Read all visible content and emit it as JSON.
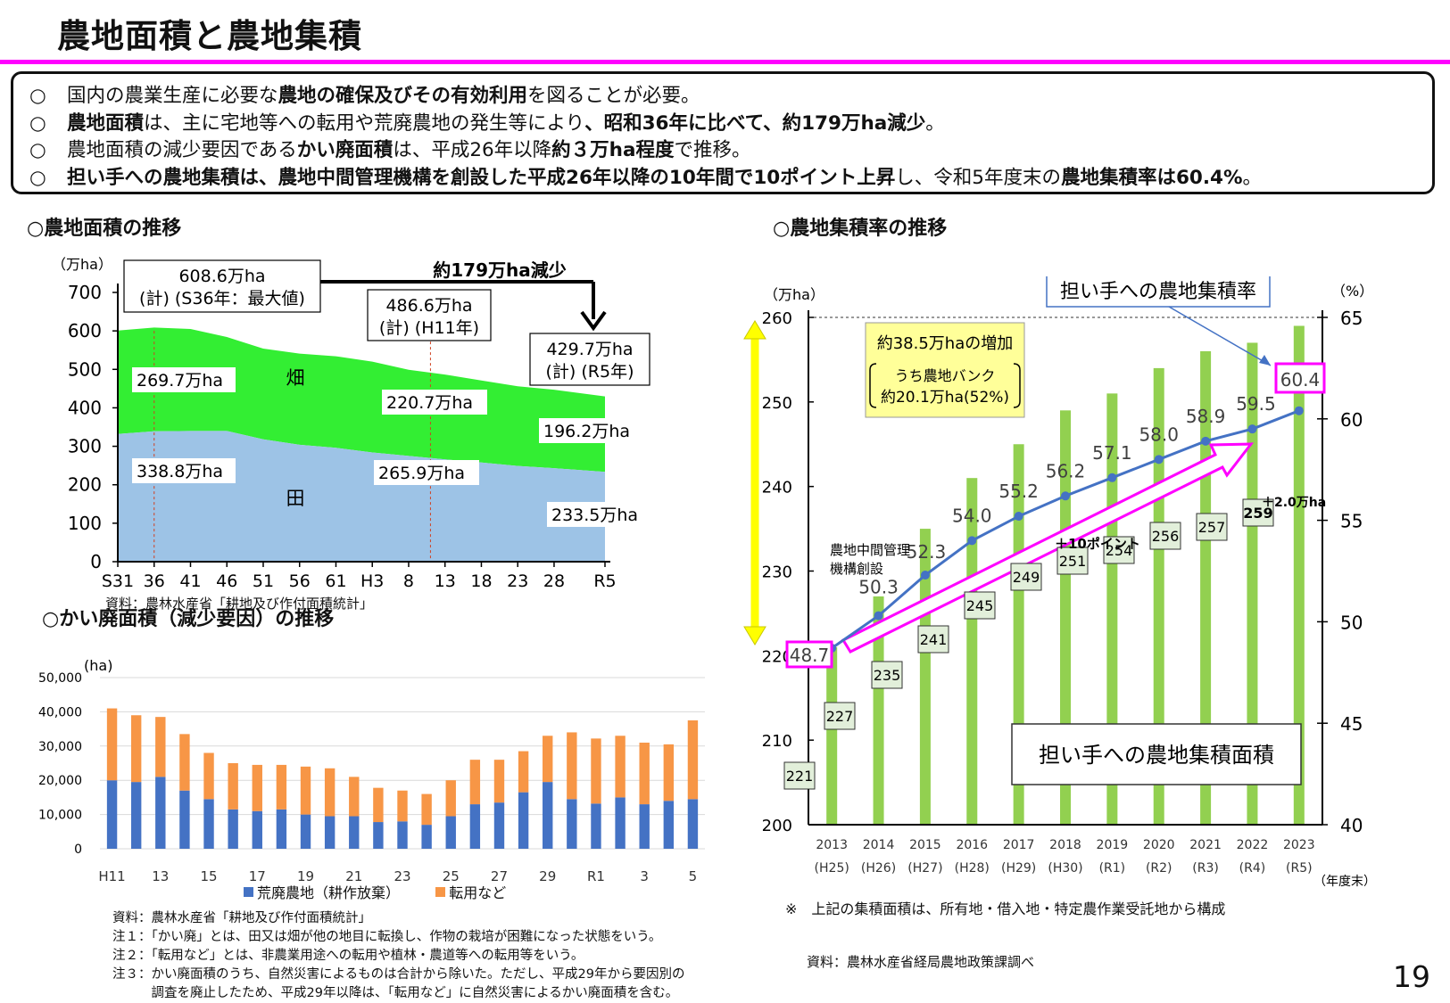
{
  "title": "農地面積と農地集積",
  "summary": [
    [
      {
        "t": "国内の農業生産に必要な",
        "b": false
      },
      {
        "t": "農地の確保及びその有効利用",
        "b": true
      },
      {
        "t": "を図ることが必要。",
        "b": false
      }
    ],
    [
      {
        "t": "農地面積",
        "b": true
      },
      {
        "t": "は、主に宅地等への転用や荒廃農地の発生等により",
        "b": false
      },
      {
        "t": "、昭和36年に比べて、約179万ha減少",
        "b": true
      },
      {
        "t": "。",
        "b": false
      }
    ],
    [
      {
        "t": "農地面積の減少要因である",
        "b": false
      },
      {
        "t": "かい廃面積",
        "b": true
      },
      {
        "t": "は、平成26年以降",
        "b": false
      },
      {
        "t": "約３万ha程度",
        "b": true
      },
      {
        "t": "で推移。",
        "b": false
      }
    ],
    [
      {
        "t": "担い手への農地集積は、農地中間管理機構を創設した平成26年以降の10年間で10ポイント上昇",
        "b": true
      },
      {
        "t": "し、令和5年度末の",
        "b": false
      },
      {
        "t": "農地集積率は60.4%",
        "b": true
      },
      {
        "t": "。",
        "b": false
      }
    ]
  ],
  "summary_marker": "○",
  "sections": {
    "area": "○農地面積の推移",
    "kaihai": "○かい廃面積（減少要因）の推移",
    "rate": "○農地集積率の推移"
  },
  "sources": {
    "area": "資料：農林水産省「耕地及び作付面積統計」",
    "kaihai": "資料：農林水産省「耕地及び作付面積統計」",
    "rate": "資料：農林水産省経局農地政策課調べ"
  },
  "notes": [
    "注１：「かい廃」とは、田又は畑が他の地目に転換し、作物の栽培が困難になった状態をいう。",
    "注２：「転用など」とは、非農業用途への転用や植林・農道等への転用等をいう。",
    "注３：かい廃面積のうち、自然災害によるものは合計から除いた。ただし、平成29年から要因別の",
    "　　　調査を廃止したため、平成29年以降は、「転用など」に自然災害によるかい廃面積を含む。"
  ],
  "rate_note": "※　上記の集積面積は、所有地・借入地・特定農作業受託地から構成",
  "page_number": "19",
  "chart_data": [
    {
      "id": "farmland_area",
      "type": "area",
      "ylabel": "（万ha）",
      "ylim": [
        0,
        700
      ],
      "yticks": [
        0,
        100,
        200,
        300,
        400,
        500,
        600,
        700
      ],
      "x_labels": [
        "S31",
        "36",
        "41",
        "46",
        "51",
        "56",
        "61",
        "H3",
        "8",
        "13",
        "18",
        "23",
        "28",
        "R5"
      ],
      "x": [
        1956,
        1961,
        1966,
        1971,
        1976,
        1981,
        1986,
        1991,
        1996,
        2001,
        2006,
        2011,
        2016,
        2023
      ],
      "series": [
        {
          "name": "田",
          "color": "#9dc3e6",
          "values": [
            332,
            339,
            340,
            340,
            318,
            304,
            296,
            284,
            275,
            265.9,
            258,
            249,
            243,
            233.5
          ]
        },
        {
          "name": "畑",
          "color": "#33ee33",
          "values": [
            269,
            269.7,
            265,
            244,
            236,
            237,
            238,
            236,
            224,
            220.7,
            213,
            207,
            204,
            196.2
          ]
        }
      ],
      "series_labels": {
        "paddy": "田",
        "upland": "畑"
      },
      "annotations": {
        "s36_total": [
          "608.6万ha",
          "(計) (S36年：最大値)"
        ],
        "h11_total": [
          "486.6万ha",
          "(計) (H11年)"
        ],
        "r5_total": [
          "429.7万ha",
          "(計) (R5年)"
        ],
        "decrease": "約179万ha減少",
        "s36_upland": "269.7万ha",
        "s36_paddy": "338.8万ha",
        "h11_upland": "220.7万ha",
        "h11_paddy": "265.9万ha",
        "r5_upland": "196.2万ha",
        "r5_paddy": "233.5万ha"
      }
    },
    {
      "id": "kaihai_area",
      "type": "bar",
      "stacked": true,
      "ylabel": "(ha)",
      "ylim": [
        0,
        50000
      ],
      "yticks": [
        "0",
        "10,000",
        "20,000",
        "30,000",
        "40,000",
        "50,000"
      ],
      "categories": [
        "H11",
        "12",
        "13",
        "14",
        "15",
        "16",
        "17",
        "18",
        "19",
        "20",
        "21",
        "22",
        "23",
        "24",
        "25",
        "26",
        "27",
        "28",
        "29",
        "30",
        "R1",
        "2",
        "3",
        "4",
        "5"
      ],
      "category_labels": [
        "H11",
        "",
        "13",
        "",
        "15",
        "",
        "17",
        "",
        "19",
        "",
        "21",
        "",
        "23",
        "",
        "25",
        "",
        "27",
        "",
        "29",
        "",
        "R1",
        "",
        "3",
        "",
        "5"
      ],
      "series": [
        {
          "name": "荒廃農地（耕作放棄）",
          "color": "#4472c4",
          "values": [
            20000,
            19500,
            21000,
            17000,
            14500,
            11500,
            11000,
            11500,
            10000,
            9500,
            9500,
            7800,
            8000,
            7000,
            9500,
            13000,
            13500,
            16500,
            19500,
            14500,
            13200,
            15000,
            13000,
            14000,
            14500
          ]
        },
        {
          "name": "転用など",
          "color": "#f79646",
          "values": [
            21000,
            19500,
            17500,
            16500,
            13500,
            13500,
            13500,
            13000,
            14000,
            14000,
            11500,
            10000,
            9000,
            9000,
            10500,
            13000,
            12500,
            12000,
            13500,
            19500,
            19000,
            18000,
            18000,
            16500,
            23000
          ]
        }
      ]
    },
    {
      "id": "consolidation",
      "type": "bar",
      "title": "担い手への農地集積率",
      "bar_title": "担い手への農地集積面積",
      "y_left_label": "（万ha）",
      "y_right_label": "（%）",
      "y_left_lim": [
        200,
        260
      ],
      "y_left_ticks": [
        200,
        210,
        220,
        230,
        240,
        250,
        260
      ],
      "y_right_lim": [
        40,
        65
      ],
      "y_right_ticks": [
        40,
        45,
        50,
        55,
        60,
        65
      ],
      "categories": [
        "2013",
        "2014",
        "2015",
        "2016",
        "2017",
        "2018",
        "2019",
        "2020",
        "2021",
        "2022",
        "2023"
      ],
      "sub_categories": [
        "(H25)",
        "(H26)",
        "(H27)",
        "(H28)",
        "(H29)",
        "(H30)",
        "(R1)",
        "(R2)",
        "(R3)",
        "(R4)",
        "(R5)"
      ],
      "x_unit": "（年度末）",
      "bar_values": [
        221,
        227,
        235,
        241,
        245,
        249,
        251,
        254,
        256,
        257,
        259
      ],
      "bar_labels": [
        "221",
        "227",
        "235",
        "241",
        "245",
        "249",
        "251",
        "254",
        "256",
        "257",
        "259"
      ],
      "bar_color": "#92d050",
      "line_values": [
        48.7,
        50.3,
        52.3,
        54.0,
        55.2,
        56.2,
        57.1,
        58.0,
        58.9,
        59.5,
        60.4
      ],
      "line_labels": [
        "48.7",
        "50.3",
        "52.3",
        "54.0",
        "55.2",
        "56.2",
        "57.1",
        "58.0",
        "58.9",
        "59.5",
        "60.4"
      ],
      "line_color": "#4472c4",
      "annotations": {
        "increase": [
          "約38.5万haの増加",
          "うち農地バンク",
          "約20.1万ha(52%)"
        ],
        "increase_unit": "万ha",
        "kikou": [
          "農地中間管理",
          "機構創設"
        ],
        "plus10": "＋10ポイント",
        "plus2": "＋2.0万ha"
      }
    }
  ]
}
